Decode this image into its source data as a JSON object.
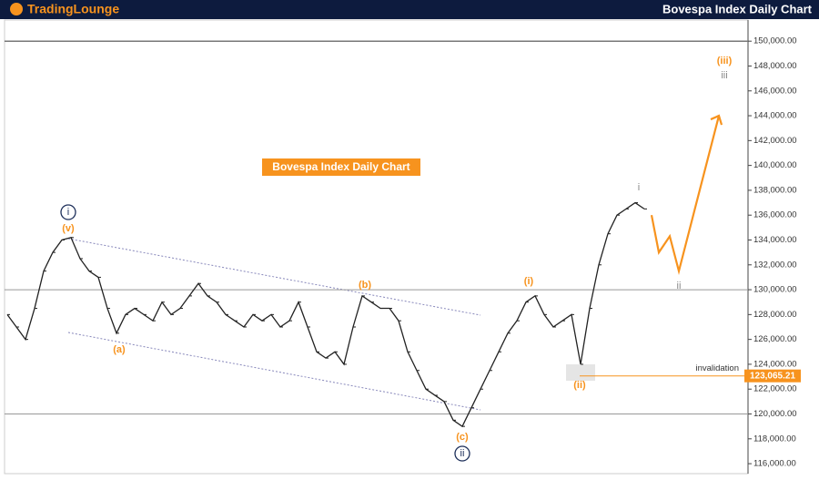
{
  "header": {
    "logo": "TradingLounge"
  },
  "chart_data": {
    "type": "line",
    "title": "Bovespa Index Daily Chart",
    "price": {
      "color": "#222222",
      "values": [
        128000,
        127000,
        126000,
        128500,
        131500,
        133000,
        134000,
        134200,
        132500,
        131500,
        131000,
        128500,
        126500,
        128000,
        128500,
        128000,
        127500,
        129000,
        128000,
        128500,
        129500,
        130500,
        129500,
        129000,
        128000,
        127500,
        127000,
        128000,
        127500,
        128000,
        127000,
        127500,
        129000,
        127000,
        125000,
        124500,
        125000,
        124000,
        127000,
        129500,
        129000,
        128500,
        128500,
        127500,
        125000,
        123500,
        122000,
        121500,
        121000,
        119500,
        119000,
        120500,
        122000,
        123500,
        125000,
        126500,
        127500,
        129000,
        129500,
        128000,
        127000,
        127500,
        128000,
        124000,
        128500,
        132000,
        134500,
        136000,
        136500,
        137000,
        136500
      ]
    },
    "projection": {
      "color": "#f7931e",
      "x": [
        70.8,
        71.6,
        72.8,
        73.8,
        78.2
      ],
      "values": [
        136000,
        133000,
        134300,
        131500,
        144000
      ]
    },
    "xlim": [
      -0.8,
      81.4
    ],
    "ylim": [
      115200,
      151700
    ],
    "yticks": [
      {
        "value": 116000,
        "label": "116,000.00"
      },
      {
        "value": 118000,
        "label": "118,000.00"
      },
      {
        "value": 120000,
        "label": "120,000.00"
      },
      {
        "value": 122000,
        "label": "122,000.00"
      },
      {
        "value": 124000,
        "label": "124,000.00"
      },
      {
        "value": 126000,
        "label": "126,000.00"
      },
      {
        "value": 128000,
        "label": "128,000.00"
      },
      {
        "value": 130000,
        "label": "130,000.00"
      },
      {
        "value": 132000,
        "label": "132,000.00"
      },
      {
        "value": 134000,
        "label": "134,000.00"
      },
      {
        "value": 136000,
        "label": "136,000.00"
      },
      {
        "value": 138000,
        "label": "138,000.00"
      },
      {
        "value": 140000,
        "label": "140,000.00"
      },
      {
        "value": 142000,
        "label": "142,000.00"
      },
      {
        "value": 144000,
        "label": "144,000.00"
      },
      {
        "value": 146000,
        "label": "146,000.00"
      },
      {
        "value": 148000,
        "label": "148,000.00"
      },
      {
        "value": 150000,
        "label": "150,000.00"
      }
    ],
    "reference_lines": [
      150000,
      130000,
      120000
    ],
    "invalidation": {
      "label": "invalidation",
      "value": 123065.21,
      "value_label": "123,065.21"
    },
    "annotations": [
      "i",
      "(v)",
      "(a)",
      "(b)",
      "(c)",
      "ii",
      "(i)",
      "(ii)",
      "i",
      "ii",
      "(iii)",
      "iii"
    ]
  }
}
